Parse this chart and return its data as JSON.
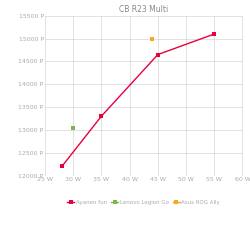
{
  "title": "CB R23 Multi",
  "xlim": [
    25,
    60
  ],
  "ylim": [
    12000,
    15500
  ],
  "xticks": [
    25,
    30,
    35,
    40,
    45,
    50,
    55,
    60
  ],
  "yticks": [
    12000,
    12500,
    13000,
    13500,
    14000,
    14500,
    15000,
    15500
  ],
  "series": [
    {
      "label": "Ayaneo fun",
      "color": "#e8003d",
      "marker": "s",
      "markersize": 2.5,
      "linewidth": 1.0,
      "x": [
        28,
        35,
        45,
        55
      ],
      "y": [
        12200,
        13300,
        14650,
        15100
      ]
    },
    {
      "label": "Lenovo Legion Go",
      "color": "#7ab648",
      "marker": "s",
      "markersize": 3.0,
      "linewidth": 0,
      "x": [
        30
      ],
      "y": [
        13050
      ]
    },
    {
      "label": "Asus ROG Ally",
      "color": "#f5a623",
      "marker": "s",
      "markersize": 3.0,
      "linewidth": 0,
      "x": [
        44
      ],
      "y": [
        14980
      ]
    }
  ],
  "background_color": "#ffffff",
  "grid_color": "#cccccc",
  "title_fontsize": 5.5,
  "tick_fontsize": 4.5,
  "tick_color": "#aaaaaa",
  "legend_fontsize": 4.0,
  "legend_color": "#aaaaaa"
}
